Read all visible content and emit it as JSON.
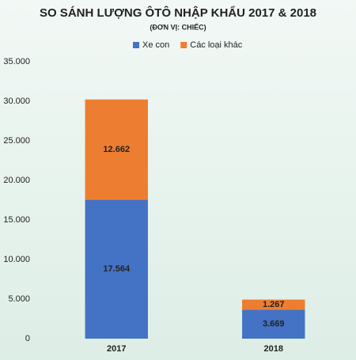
{
  "chart_data": {
    "type": "stacked_bar",
    "title": "SO SÁNH LƯỢNG ÔTÔ NHẬP KHẨU 2017 & 2018",
    "subtitle": "(ĐƠN VỊ: CHIẾC)",
    "categories": [
      "2017",
      "2018"
    ],
    "series": [
      {
        "name": "Xe con",
        "color": "#4472c4",
        "values": [
          17564,
          3669
        ],
        "value_labels": [
          "17.564",
          "3.669"
        ]
      },
      {
        "name": "Các loại khác",
        "color": "#ed7d31",
        "values": [
          12662,
          1267
        ],
        "value_labels": [
          "12.662",
          "1.267"
        ]
      }
    ],
    "ylim": [
      0,
      35000
    ],
    "yticks": [
      0,
      {
        "value": 5000,
        "label": "5.000"
      },
      {
        "value": 10000,
        "label": "10.000"
      },
      {
        "value": 15000,
        "label": "15.000"
      },
      {
        "value": 20000,
        "label": "20.000"
      },
      {
        "value": 25000,
        "label": "25.000"
      },
      {
        "value": 30000,
        "label": "30.000"
      },
      {
        "value": 35000,
        "label": "35.000"
      }
    ],
    "legend": "top",
    "grid": false
  }
}
